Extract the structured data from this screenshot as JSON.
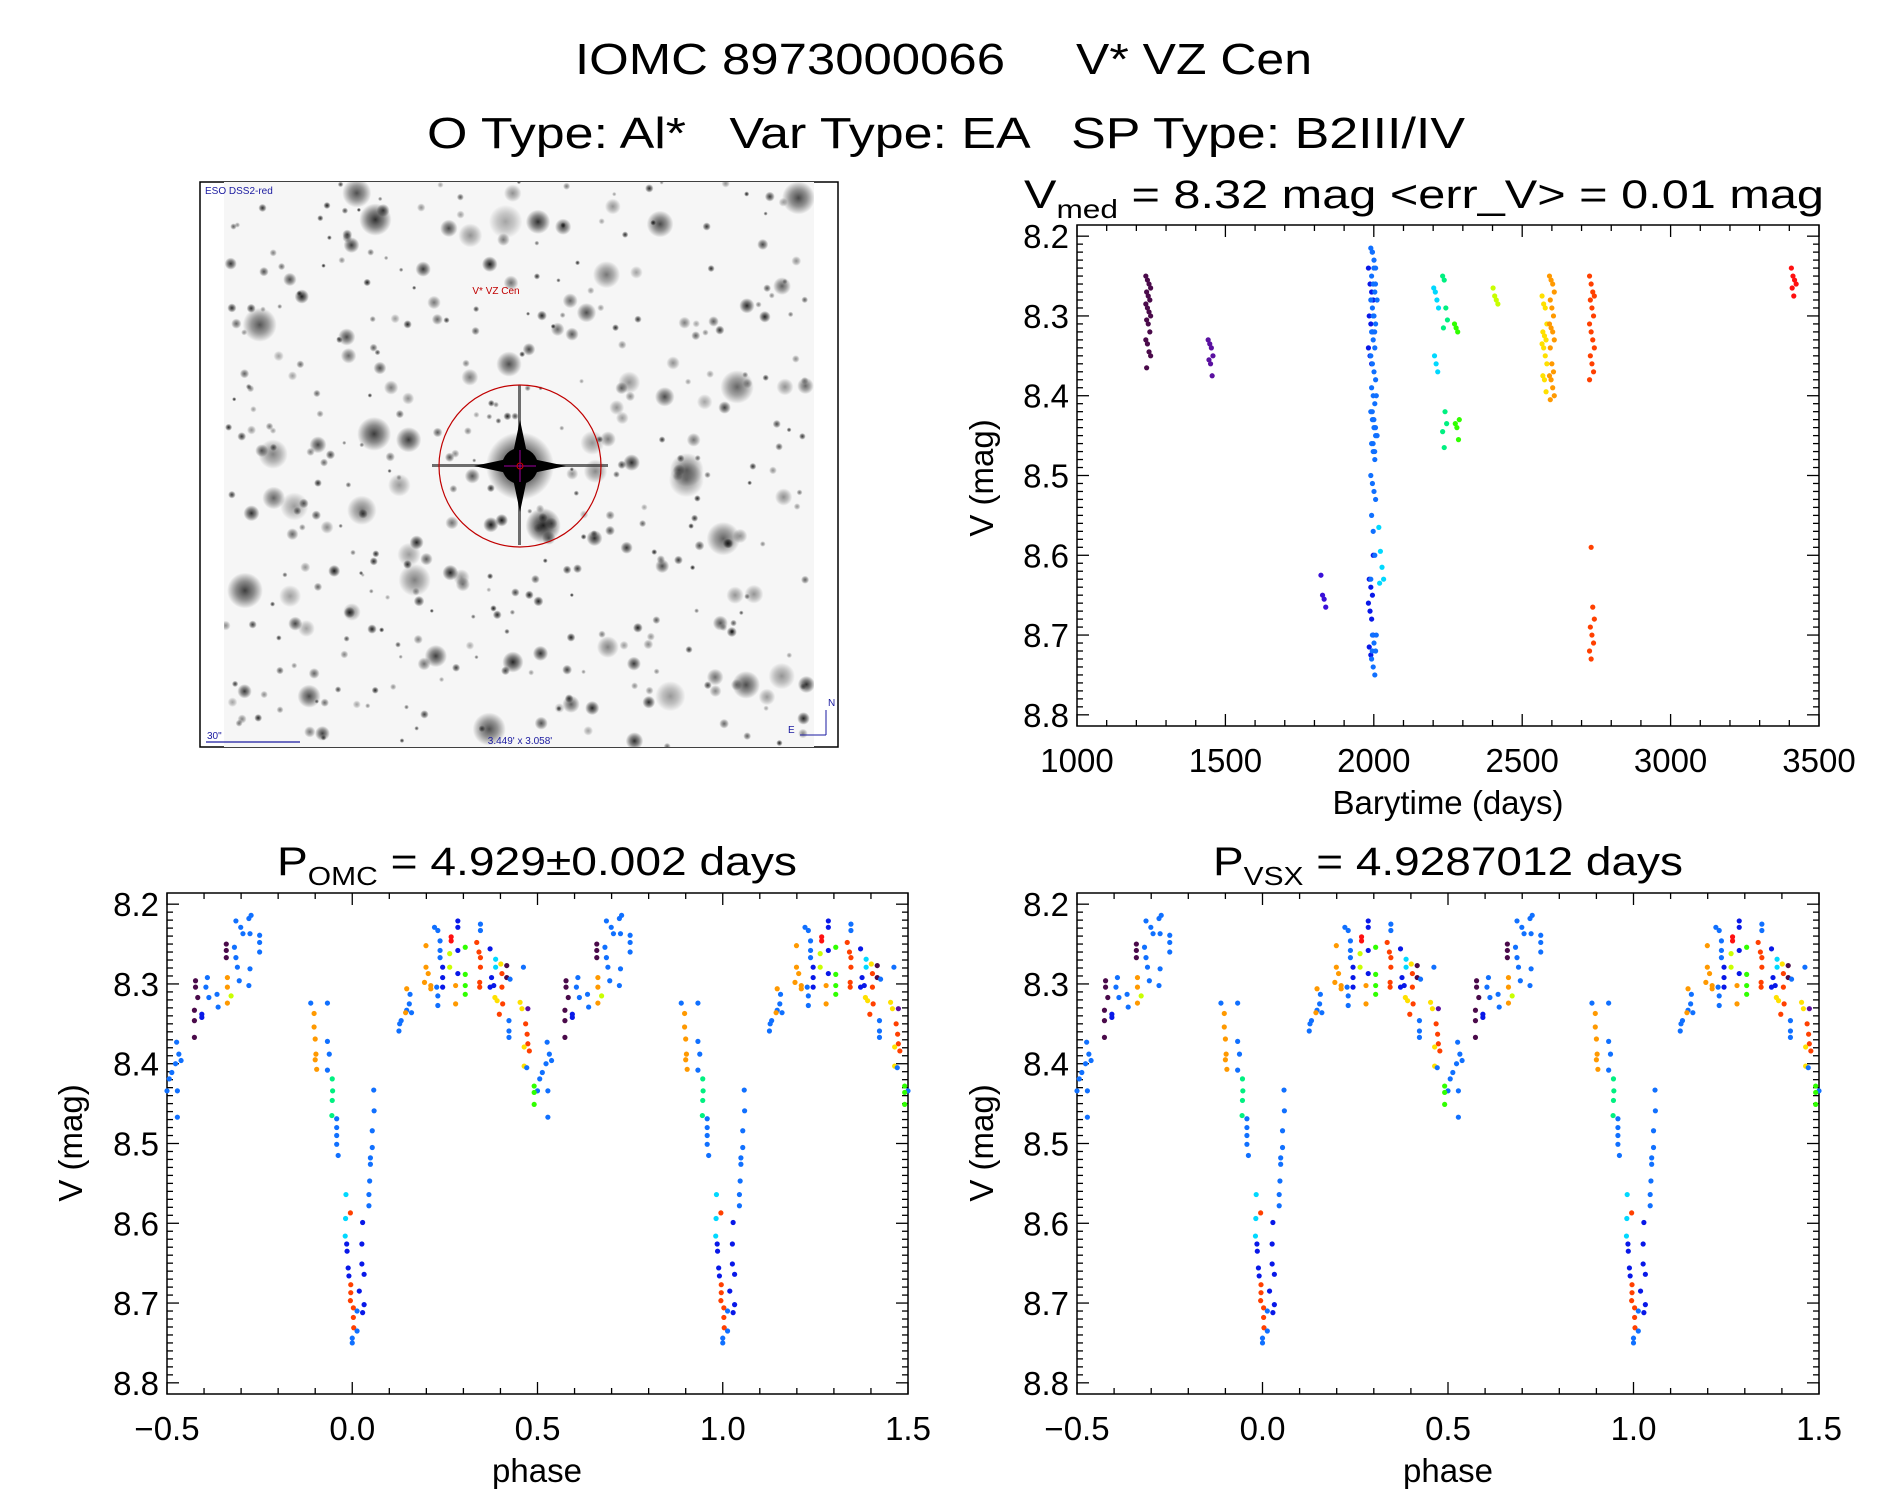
{
  "header": {
    "line1_id": "IOMC 8973000066",
    "line1_name": "V* VZ Cen",
    "line2": "O Type: Al*   Var Type: EA   SP Type: B2III/IV"
  },
  "image_panel": {
    "survey": "ESO DSS2-red",
    "target_label": "V* VZ Cen",
    "scale_label": "30\"",
    "field_size": "3.449' x 3.058'",
    "north": "N",
    "east": "E"
  },
  "palette": [
    "#4a0a4a",
    "#5a10a0",
    "#0818e8",
    "#1070ff",
    "#00d8ff",
    "#00f080",
    "#30ff00",
    "#c8ff00",
    "#ffe000",
    "#ff9900",
    "#ff4000",
    "#ff1010",
    "#3a10d8"
  ],
  "chart_data": [
    {
      "type": "scatter",
      "title_main": "V",
      "title_sub": "med",
      "title_rest": " = 8.32 mag <err_V> = 0.01 mag",
      "xlabel": "Barytime (days)",
      "ylabel": "V (mag)",
      "xlim": [
        1000,
        3500
      ],
      "ylim": [
        8.814,
        8.186
      ],
      "xticks": [
        "1000",
        "1500",
        "2000",
        "2500",
        "3000",
        "3500"
      ],
      "yticks": [
        "8.2",
        "8.3",
        "8.4",
        "8.5",
        "8.6",
        "8.7",
        "8.8"
      ],
      "groups": [
        {
          "t": 1240,
          "c": 0,
          "v": [
            8.25,
            8.255,
            8.26,
            8.265,
            8.27,
            8.275,
            8.28,
            8.285,
            8.29,
            8.295,
            8.3,
            8.305,
            8.31,
            8.32,
            8.33,
            8.335,
            8.345,
            8.35,
            8.365
          ]
        },
        {
          "t": 1450,
          "c": 1,
          "v": [
            8.33,
            8.335,
            8.34,
            8.35,
            8.355,
            8.36,
            8.375
          ]
        },
        {
          "t": 1830,
          "c": 12,
          "v": [
            8.625,
            8.65,
            8.655,
            8.665
          ]
        },
        {
          "t": 1990,
          "c": 2,
          "v": [
            8.24,
            8.26,
            8.27,
            8.28,
            8.3,
            8.31,
            8.32,
            8.34,
            8.35,
            8.36,
            8.6,
            8.63,
            8.64,
            8.65,
            8.66,
            8.67,
            8.68,
            8.7,
            8.715,
            8.725
          ]
        },
        {
          "t": 1998,
          "c": 3,
          "v": [
            8.215,
            8.22,
            8.23,
            8.24,
            8.25,
            8.26,
            8.27,
            8.28,
            8.29,
            8.3,
            8.31,
            8.32,
            8.33,
            8.34,
            8.35,
            8.36,
            8.37,
            8.38,
            8.39,
            8.4,
            8.41,
            8.42,
            8.43,
            8.44,
            8.45,
            8.46,
            8.47,
            8.48,
            8.5,
            8.51,
            8.52,
            8.53,
            8.55,
            8.57,
            8.6,
            8.63,
            8.7,
            8.71,
            8.72,
            8.73,
            8.74,
            8.75
          ]
        },
        {
          "t": 2003,
          "c": 3,
          "v": [
            8.22,
            8.24,
            8.26,
            8.28,
            8.3,
            8.32,
            8.4,
            8.42,
            8.43,
            8.44,
            8.45,
            8.46,
            8.47,
            8.7,
            8.72
          ]
        },
        {
          "t": 2025,
          "c": 4,
          "v": [
            8.565,
            8.595,
            8.615,
            8.63,
            8.635
          ]
        },
        {
          "t": 2210,
          "c": 4,
          "v": [
            8.265,
            8.27,
            8.28,
            8.29,
            8.35,
            8.36,
            8.37
          ]
        },
        {
          "t": 2240,
          "c": 5,
          "v": [
            8.25,
            8.255,
            8.29,
            8.305,
            8.315,
            8.42,
            8.435,
            8.445,
            8.465
          ]
        },
        {
          "t": 2280,
          "c": 6,
          "v": [
            8.31,
            8.315,
            8.32,
            8.43,
            8.435,
            8.44,
            8.455
          ]
        },
        {
          "t": 2410,
          "c": 7,
          "v": [
            8.265,
            8.275,
            8.28,
            8.285
          ]
        },
        {
          "t": 2575,
          "c": 8,
          "v": [
            8.275,
            8.285,
            8.29,
            8.31,
            8.32,
            8.325,
            8.33,
            8.335,
            8.34,
            8.35,
            8.36,
            8.375,
            8.38,
            8.395
          ]
        },
        {
          "t": 2600,
          "c": 9,
          "v": [
            8.25,
            8.255,
            8.26,
            8.27,
            8.28,
            8.29,
            8.3,
            8.31,
            8.315,
            8.32,
            8.33,
            8.34,
            8.36,
            8.37,
            8.375,
            8.38,
            8.39,
            8.4,
            8.405
          ]
        },
        {
          "t": 2735,
          "c": 10,
          "v": [
            8.25,
            8.26,
            8.27,
            8.275,
            8.28,
            8.29,
            8.3,
            8.31,
            8.32,
            8.33,
            8.34,
            8.35,
            8.36,
            8.37,
            8.38,
            8.59,
            8.665,
            8.68,
            8.69,
            8.7,
            8.71,
            8.72,
            8.73
          ]
        },
        {
          "t": 3415,
          "c": 11,
          "v": [
            8.24,
            8.25,
            8.255,
            8.26,
            8.265,
            8.275
          ]
        }
      ]
    },
    {
      "type": "scatter",
      "title_main": "P",
      "title_sub": "OMC",
      "title_rest": " = 4.929±0.002 days",
      "xlabel": "phase",
      "ylabel": "V (mag)",
      "xlim": [
        -0.5,
        1.5
      ],
      "ylim": [
        8.814,
        8.186
      ],
      "xticks": [
        "−0.5",
        "0.0",
        "0.5",
        "1.0",
        "1.5"
      ],
      "yticks": [
        "8.2",
        "8.3",
        "8.4",
        "8.5",
        "8.6",
        "8.7",
        "8.8"
      ],
      "period_days": 4.929
    },
    {
      "type": "scatter",
      "title_main": "P",
      "title_sub": "VSX",
      "title_rest": " = 4.9287012 days",
      "xlabel": "phase",
      "ylabel": "V (mag)",
      "xlim": [
        -0.5,
        1.5
      ],
      "ylim": [
        8.814,
        8.186
      ],
      "xticks": [
        "−0.5",
        "0.0",
        "0.5",
        "1.0",
        "1.5"
      ],
      "yticks": [
        "8.2",
        "8.3",
        "8.4",
        "8.5",
        "8.6",
        "8.7",
        "8.8"
      ],
      "period_days": 4.9287012
    }
  ],
  "phase_points": [
    [
      -0.112,
      8.324,
      3
    ],
    [
      -0.067,
      8.324,
      3
    ],
    [
      -0.103,
      8.337,
      9
    ],
    [
      -0.103,
      8.354,
      9
    ],
    [
      -0.1,
      8.369,
      9
    ],
    [
      -0.098,
      8.388,
      9
    ],
    [
      -0.1,
      8.395,
      9
    ],
    [
      -0.096,
      8.407,
      9
    ],
    [
      -0.067,
      8.372,
      3
    ],
    [
      -0.062,
      8.388,
      3
    ],
    [
      -0.067,
      8.408,
      3
    ],
    [
      -0.054,
      8.419,
      5
    ],
    [
      -0.053,
      8.434,
      5
    ],
    [
      -0.054,
      8.446,
      5
    ],
    [
      -0.055,
      8.465,
      5
    ],
    [
      -0.042,
      8.469,
      3
    ],
    [
      -0.042,
      8.48,
      3
    ],
    [
      -0.042,
      8.49,
      3
    ],
    [
      -0.042,
      8.501,
      3
    ],
    [
      -0.038,
      8.515,
      3
    ],
    [
      -0.017,
      8.564,
      4
    ],
    [
      -0.018,
      8.594,
      4
    ],
    [
      -0.019,
      8.616,
      4
    ],
    [
      -0.005,
      8.587,
      10
    ],
    [
      -0.015,
      8.626,
      2
    ],
    [
      -0.014,
      8.635,
      2
    ],
    [
      -0.011,
      8.656,
      2
    ],
    [
      -0.009,
      8.666,
      2
    ],
    [
      -0.004,
      8.677,
      10
    ],
    [
      -0.004,
      8.687,
      10
    ],
    [
      -0.005,
      8.697,
      10
    ],
    [
      0.003,
      8.706,
      10
    ],
    [
      0.003,
      8.718,
      10
    ],
    [
      0.004,
      8.731,
      10
    ],
    [
      0.0,
      8.744,
      3
    ],
    [
      0.0,
      8.75,
      3
    ],
    [
      0.013,
      8.71,
      3
    ],
    [
      0.013,
      8.735,
      3
    ],
    [
      0.019,
      8.685,
      2
    ],
    [
      0.026,
      8.651,
      2
    ],
    [
      0.026,
      8.626,
      2
    ],
    [
      0.028,
      8.599,
      2
    ],
    [
      0.028,
      8.712,
      2
    ],
    [
      0.032,
      8.702,
      2
    ],
    [
      0.032,
      8.664,
      2
    ],
    [
      0.045,
      8.578,
      3
    ],
    [
      0.045,
      8.564,
      3
    ],
    [
      0.047,
      8.547,
      3
    ],
    [
      0.049,
      8.526,
      3
    ],
    [
      0.049,
      8.518,
      3
    ],
    [
      0.054,
      8.505,
      3
    ],
    [
      0.054,
      8.484,
      3
    ],
    [
      0.059,
      8.459,
      3
    ],
    [
      0.058,
      8.433,
      3
    ],
    [
      0.126,
      8.359,
      3
    ],
    [
      0.128,
      8.35,
      3
    ],
    [
      0.132,
      8.346,
      3
    ],
    [
      0.147,
      8.333,
      3
    ],
    [
      0.154,
      8.325,
      3
    ],
    [
      0.156,
      8.313,
      3
    ],
    [
      0.16,
      8.336,
      3
    ],
    [
      0.147,
      8.306,
      9
    ],
    [
      0.144,
      8.336,
      9
    ],
    [
      0.199,
      8.252,
      9
    ],
    [
      0.199,
      8.279,
      9
    ],
    [
      0.205,
      8.287,
      9
    ],
    [
      0.212,
      8.302,
      9
    ],
    [
      0.212,
      8.306,
      9
    ],
    [
      0.195,
      8.298,
      9
    ],
    [
      0.222,
      8.229,
      3
    ],
    [
      0.231,
      8.233,
      3
    ],
    [
      0.231,
      8.315,
      3
    ],
    [
      0.231,
      8.327,
      3
    ],
    [
      0.237,
      8.246,
      3
    ],
    [
      0.237,
      8.258,
      3
    ],
    [
      0.237,
      8.267,
      3
    ],
    [
      0.228,
      8.304,
      3
    ],
    [
      0.244,
      8.279,
      2
    ],
    [
      0.244,
      8.292,
      2
    ],
    [
      0.244,
      8.304,
      2
    ],
    [
      0.267,
      8.246,
      11
    ],
    [
      0.267,
      8.241,
      11
    ],
    [
      0.263,
      8.262,
      7
    ],
    [
      0.263,
      8.279,
      7
    ],
    [
      0.285,
      8.221,
      2
    ],
    [
      0.285,
      8.229,
      2
    ],
    [
      0.285,
      8.258,
      2
    ],
    [
      0.285,
      8.287,
      2
    ],
    [
      0.279,
      8.302,
      9
    ],
    [
      0.279,
      8.325,
      9
    ],
    [
      0.305,
      8.254,
      6
    ],
    [
      0.305,
      8.288,
      6
    ],
    [
      0.305,
      8.302,
      6
    ],
    [
      0.305,
      8.313,
      6
    ],
    [
      0.346,
      8.225,
      3
    ],
    [
      0.346,
      8.233,
      3
    ],
    [
      0.336,
      8.248,
      10
    ],
    [
      0.342,
      8.26,
      10
    ],
    [
      0.346,
      8.267,
      10
    ],
    [
      0.346,
      8.279,
      10
    ],
    [
      0.344,
      8.298,
      10
    ],
    [
      0.344,
      8.304,
      10
    ],
    [
      0.372,
      8.256,
      2
    ],
    [
      0.372,
      8.304,
      2
    ],
    [
      0.376,
      8.292,
      2
    ],
    [
      0.382,
      8.302,
      2
    ],
    [
      0.387,
      8.269,
      4
    ],
    [
      0.387,
      8.279,
      4
    ],
    [
      0.401,
      8.275,
      8
    ],
    [
      0.385,
      8.317,
      8
    ],
    [
      0.391,
      8.321,
      8
    ],
    [
      0.404,
      8.287,
      10
    ],
    [
      0.404,
      8.304,
      10
    ],
    [
      0.406,
      8.325,
      10
    ],
    [
      0.397,
      8.338,
      10
    ],
    [
      0.417,
      8.277,
      0
    ],
    [
      0.417,
      8.292,
      0
    ],
    [
      0.426,
      8.294,
      3
    ],
    [
      0.423,
      8.346,
      3
    ],
    [
      0.423,
      8.359,
      3
    ],
    [
      0.423,
      8.367,
      3
    ],
    [
      0.462,
      8.279,
      3
    ],
    [
      0.453,
      8.323,
      8
    ],
    [
      0.458,
      8.331,
      8
    ],
    [
      0.474,
      8.331,
      1
    ],
    [
      0.468,
      8.35,
      10
    ],
    [
      0.472,
      8.363,
      10
    ],
    [
      0.474,
      8.375,
      10
    ],
    [
      0.478,
      8.384,
      10
    ],
    [
      0.464,
      8.379,
      8
    ],
    [
      0.464,
      8.403,
      8
    ],
    [
      0.471,
      8.405,
      3
    ],
    [
      0.526,
      8.373,
      3
    ],
    [
      0.532,
      8.388,
      3
    ],
    [
      0.538,
      8.396,
      3
    ],
    [
      0.523,
      8.4,
      3
    ],
    [
      0.513,
      8.411,
      3
    ],
    [
      0.506,
      8.419,
      3
    ],
    [
      0.5,
      8.434,
      3
    ],
    [
      0.528,
      8.434,
      3
    ],
    [
      0.528,
      8.467,
      3
    ],
    [
      0.491,
      8.428,
      6
    ],
    [
      0.491,
      8.436,
      6
    ],
    [
      0.491,
      8.451,
      6
    ],
    [
      0.577,
      8.296,
      0
    ],
    [
      0.577,
      8.304,
      0
    ],
    [
      0.583,
      8.317,
      0
    ],
    [
      0.574,
      8.333,
      0
    ],
    [
      0.574,
      8.346,
      0
    ],
    [
      0.574,
      8.367,
      0
    ],
    [
      0.594,
      8.338,
      2
    ],
    [
      0.594,
      8.342,
      2
    ],
    [
      0.609,
      8.292,
      3
    ],
    [
      0.605,
      8.304,
      3
    ],
    [
      0.613,
      8.317,
      3
    ],
    [
      0.635,
      8.313,
      3
    ],
    [
      0.638,
      8.329,
      3
    ],
    [
      0.663,
      8.292,
      9
    ],
    [
      0.663,
      8.304,
      9
    ],
    [
      0.663,
      8.324,
      9
    ],
    [
      0.673,
      8.315,
      7
    ],
    [
      0.66,
      8.25,
      0
    ],
    [
      0.66,
      8.258,
      0
    ],
    [
      0.66,
      8.267,
      0
    ],
    [
      0.682,
      8.254,
      3
    ],
    [
      0.686,
      8.267,
      3
    ],
    [
      0.686,
      8.221,
      3
    ],
    [
      0.69,
      8.279,
      3
    ],
    [
      0.695,
      8.296,
      3
    ],
    [
      0.699,
      8.229,
      3
    ],
    [
      0.705,
      8.237,
      3
    ],
    [
      0.721,
      8.218,
      3
    ],
    [
      0.721,
      8.302,
      3
    ],
    [
      0.727,
      8.214,
      3
    ],
    [
      0.724,
      8.237,
      3
    ],
    [
      0.724,
      8.281,
      3
    ],
    [
      0.75,
      8.239,
      3
    ],
    [
      0.75,
      8.248,
      3
    ],
    [
      0.75,
      8.26,
      3
    ]
  ]
}
